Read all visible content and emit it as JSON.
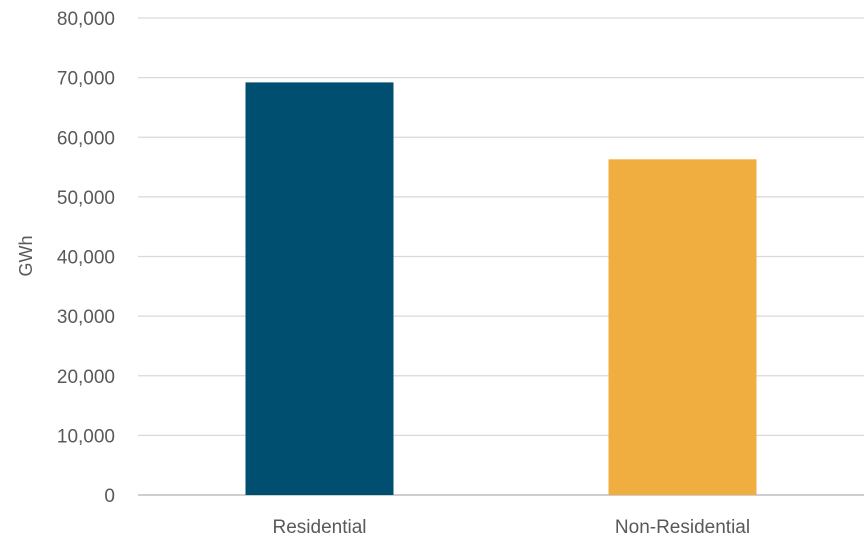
{
  "chart_data": {
    "type": "bar",
    "title": "",
    "xlabel": "",
    "ylabel": "GWh",
    "categories": [
      "Residential",
      "Non-Residential"
    ],
    "values": [
      69200,
      56300
    ],
    "bar_colors": [
      "#004f71",
      "#f0ae41"
    ],
    "ylim": [
      0,
      80000
    ],
    "yticks": [
      0,
      10000,
      20000,
      30000,
      40000,
      50000,
      60000,
      70000,
      80000
    ],
    "ytick_labels": [
      "0",
      "10,000",
      "20,000",
      "30,000",
      "40,000",
      "50,000",
      "60,000",
      "70,000",
      "80,000"
    ],
    "grid": true,
    "grid_color": "#d9d9d9",
    "legend": "none"
  }
}
